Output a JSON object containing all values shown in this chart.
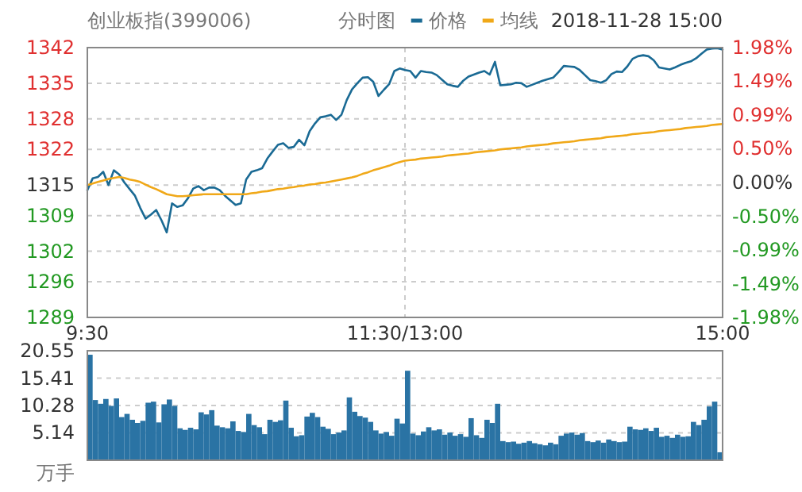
{
  "chart_data": [
    {
      "type": "line",
      "title": "创业板指(399006)",
      "subtitle": "分时图",
      "annotations": [
        "2018-11-28 15:00"
      ],
      "legend": "top",
      "grid": true,
      "categories": [
        "9:30",
        null,
        null,
        null,
        null,
        null,
        null,
        null,
        null,
        null,
        null,
        null,
        null,
        null,
        null,
        null,
        null,
        null,
        null,
        null,
        null,
        null,
        null,
        null,
        null,
        null,
        null,
        null,
        null,
        null,
        null,
        null,
        null,
        null,
        null,
        null,
        null,
        null,
        null,
        null,
        null,
        null,
        null,
        null,
        null,
        null,
        null,
        null,
        null,
        null,
        null,
        null,
        null,
        null,
        null,
        null,
        null,
        null,
        null,
        null,
        "11:30/13:00",
        null,
        null,
        null,
        null,
        null,
        null,
        null,
        null,
        null,
        null,
        null,
        null,
        null,
        null,
        null,
        null,
        null,
        null,
        null,
        null,
        null,
        null,
        null,
        null,
        null,
        null,
        null,
        null,
        null,
        null,
        null,
        null,
        null,
        null,
        null,
        null,
        null,
        null,
        null,
        null,
        null,
        null,
        null,
        null,
        null,
        null,
        null,
        null,
        null,
        null,
        null,
        null,
        null,
        null,
        null,
        null,
        null,
        null,
        null,
        "15:00"
      ],
      "ylim": [
        1289,
        1342
      ],
      "yticks": [
        1289,
        1296,
        1302,
        1309,
        1315,
        1322,
        1328,
        1335,
        1342
      ],
      "y2lim": [
        -1.98,
        1.98
      ],
      "y2ticks": [
        {
          "value": -1.98,
          "label": "-1.98%"
        },
        {
          "value": -1.49,
          "label": "-1.49%"
        },
        {
          "value": -0.99,
          "label": "-0.99%"
        },
        {
          "value": -0.5,
          "label": "-0.50%"
        },
        {
          "value": 0,
          "label": "0.00%"
        },
        {
          "value": 0.5,
          "label": "0.50%"
        },
        {
          "value": 0.99,
          "label": "0.99%"
        },
        {
          "value": 1.49,
          "label": "1.49%"
        },
        {
          "value": 1.98,
          "label": "1.98%"
        }
      ],
      "series": [
        {
          "name": "价格",
          "color": "#1a6a94",
          "values": [
            1314.0,
            1316.3,
            1316.6,
            1317.6,
            1315.0,
            1317.9,
            1317.1,
            1315.5,
            1314.2,
            1312.9,
            1310.5,
            1308.4,
            1309.2,
            1310.1,
            1308.1,
            1305.7,
            1311.4,
            1310.7,
            1311.0,
            1312.4,
            1314.3,
            1314.8,
            1314.0,
            1314.5,
            1314.5,
            1314.0,
            1312.9,
            1312.0,
            1311.1,
            1311.4,
            1316.1,
            1317.6,
            1317.9,
            1318.3,
            1320.2,
            1321.6,
            1322.9,
            1323.2,
            1322.3,
            1322.5,
            1323.9,
            1322.8,
            1325.6,
            1327.1,
            1328.3,
            1328.5,
            1328.8,
            1327.8,
            1328.8,
            1331.7,
            1333.8,
            1335.0,
            1336.1,
            1336.2,
            1335.3,
            1332.5,
            1333.7,
            1334.8,
            1337.4,
            1337.9,
            1337.6,
            1337.4,
            1336.1,
            1337.4,
            1337.2,
            1337.1,
            1336.6,
            1335.7,
            1334.8,
            1334.5,
            1334.3,
            1335.5,
            1336.3,
            1336.7,
            1337.1,
            1337.4,
            1336.7,
            1339.2,
            1334.6,
            1334.7,
            1334.8,
            1335.1,
            1335.0,
            1334.3,
            1334.7,
            1335.1,
            1335.5,
            1335.8,
            1336.1,
            1337.2,
            1338.4,
            1338.3,
            1338.2,
            1337.6,
            1336.6,
            1335.6,
            1335.4,
            1335.1,
            1335.6,
            1336.8,
            1337.3,
            1337.2,
            1338.3,
            1339.8,
            1340.3,
            1340.5,
            1340.3,
            1339.5,
            1338.1,
            1337.9,
            1337.7,
            1338.1,
            1338.6,
            1339.0,
            1339.3,
            1339.9,
            1340.8,
            1341.6,
            1341.8,
            1341.9,
            1341.6
          ]
        },
        {
          "name": "均线",
          "color": "#f0a818",
          "values": [
            1315.0,
            1315.3,
            1315.6,
            1315.9,
            1316.2,
            1316.4,
            1316.6,
            1316.4,
            1316.1,
            1315.9,
            1315.6,
            1315.1,
            1314.6,
            1314.2,
            1313.7,
            1313.2,
            1313.0,
            1312.8,
            1312.8,
            1312.9,
            1313.0,
            1313.1,
            1313.2,
            1313.2,
            1313.2,
            1313.2,
            1313.2,
            1313.2,
            1313.2,
            1313.2,
            1313.2,
            1313.4,
            1313.5,
            1313.7,
            1313.8,
            1314.0,
            1314.2,
            1314.3,
            1314.5,
            1314.6,
            1314.8,
            1314.9,
            1315.1,
            1315.2,
            1315.4,
            1315.5,
            1315.7,
            1315.9,
            1316.1,
            1316.3,
            1316.5,
            1316.8,
            1317.2,
            1317.5,
            1317.9,
            1318.2,
            1318.5,
            1318.8,
            1319.2,
            1319.5,
            1319.8,
            1319.9,
            1320.0,
            1320.2,
            1320.3,
            1320.4,
            1320.5,
            1320.6,
            1320.8,
            1320.9,
            1321.0,
            1321.1,
            1321.2,
            1321.4,
            1321.5,
            1321.6,
            1321.7,
            1321.8,
            1322.0,
            1322.1,
            1322.2,
            1322.3,
            1322.4,
            1322.6,
            1322.7,
            1322.8,
            1322.9,
            1323.0,
            1323.2,
            1323.3,
            1323.4,
            1323.5,
            1323.6,
            1323.8,
            1323.9,
            1324.0,
            1324.1,
            1324.2,
            1324.4,
            1324.5,
            1324.6,
            1324.7,
            1324.8,
            1325.0,
            1325.1,
            1325.2,
            1325.3,
            1325.4,
            1325.6,
            1325.7,
            1325.8,
            1325.9,
            1326.0,
            1326.2,
            1326.3,
            1326.4,
            1326.5,
            1326.6,
            1326.8,
            1326.9,
            1327.0
          ]
        }
      ]
    },
    {
      "type": "bar",
      "ylabel": "万手",
      "grid": "y",
      "color": "#2a73a4",
      "categories": [
        null,
        null,
        null,
        null,
        null,
        null,
        null,
        null,
        null,
        null,
        null,
        null,
        null,
        null,
        null,
        null,
        null,
        null,
        null,
        null,
        null,
        null,
        null,
        null,
        null,
        null,
        null,
        null,
        null,
        null,
        null,
        null,
        null,
        null,
        null,
        null,
        null,
        null,
        null,
        null,
        null,
        null,
        null,
        null,
        null,
        null,
        null,
        null,
        null,
        null,
        null,
        null,
        null,
        null,
        null,
        null,
        null,
        null,
        null,
        null,
        null,
        null,
        null,
        null,
        null,
        null,
        null,
        null,
        null,
        null,
        null,
        null,
        null,
        null,
        null,
        null,
        null,
        null,
        null,
        null,
        null,
        null,
        null,
        null,
        null,
        null,
        null,
        null,
        null,
        null,
        null,
        null,
        null,
        null,
        null,
        null,
        null,
        null,
        null,
        null,
        null,
        null,
        null,
        null,
        null,
        null,
        null,
        null,
        null,
        null,
        null,
        null,
        null,
        null,
        null,
        null,
        null,
        null,
        null,
        null
      ],
      "ylim": [
        0,
        20.55
      ],
      "yticks": [
        5.14,
        10.28,
        15.41,
        20.55
      ],
      "values": [
        19.8,
        11.3,
        10.6,
        11.5,
        10.2,
        11.6,
        8.1,
        8.7,
        7.6,
        7.0,
        7.4,
        10.8,
        11.0,
        7.1,
        10.5,
        11.4,
        10.2,
        6.0,
        5.7,
        6.1,
        5.8,
        9.0,
        8.6,
        9.4,
        6.5,
        6.2,
        6.0,
        7.3,
        5.5,
        5.3,
        8.7,
        6.6,
        6.2,
        4.9,
        7.6,
        7.2,
        7.5,
        11.2,
        6.1,
        4.5,
        4.7,
        8.2,
        8.9,
        8.1,
        6.3,
        5.9,
        4.9,
        5.2,
        5.6,
        11.8,
        9.1,
        8.3,
        8.0,
        7.2,
        5.6,
        5.0,
        5.3,
        4.6,
        7.8,
        6.9,
        16.8,
        5.0,
        4.7,
        5.4,
        6.2,
        5.6,
        5.8,
        4.8,
        5.2,
        4.6,
        4.9,
        4.4,
        7.9,
        4.7,
        4.2,
        7.6,
        7.0,
        10.6,
        3.6,
        3.4,
        3.5,
        3.1,
        3.3,
        3.6,
        3.2,
        3.0,
        2.8,
        3.3,
        3.0,
        4.6,
        5.0,
        5.2,
        4.8,
        5.1,
        3.6,
        3.4,
        3.7,
        3.3,
        3.9,
        3.6,
        3.4,
        3.5,
        6.3,
        5.8,
        5.7,
        6.0,
        5.5,
        6.1,
        4.4,
        4.6,
        4.2,
        4.8,
        4.4,
        4.5,
        7.2,
        6.6,
        7.6,
        10.1,
        11.0,
        1.5
      ]
    }
  ]
}
